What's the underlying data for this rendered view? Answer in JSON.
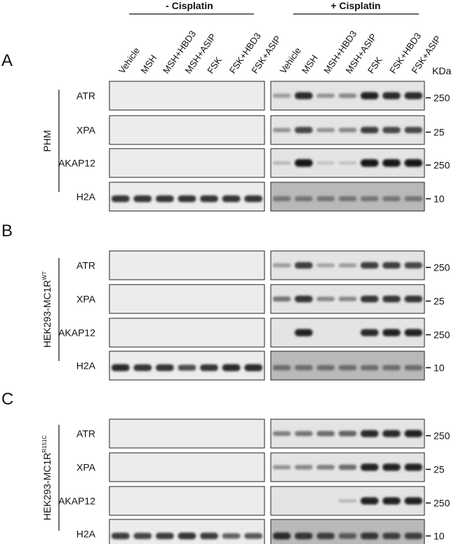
{
  "figure": {
    "treatments": {
      "minus": "- Cisplatin",
      "plus": "+ Cisplatin"
    },
    "lanes": [
      "Vehicle",
      "MSH",
      "MSH+HBD3",
      "MSH+ASIP",
      "FSK",
      "FSK+HBD3",
      "FSK+ASIP"
    ],
    "kda_label": "KDa",
    "panels": [
      {
        "letter": "A",
        "cell_line": "PHM",
        "cell_sup": "",
        "rows": [
          {
            "protein": "ATR",
            "marker": "250",
            "minus": [
              0,
              0,
              0,
              0,
              0,
              0,
              0
            ],
            "plus": [
              0.25,
              0.85,
              0.3,
              0.35,
              0.9,
              0.85,
              0.85
            ]
          },
          {
            "protein": "XPA",
            "marker": "25",
            "minus": [
              0,
              0,
              0,
              0,
              0,
              0,
              0
            ],
            "plus": [
              0.3,
              0.7,
              0.3,
              0.35,
              0.75,
              0.7,
              0.7
            ]
          },
          {
            "protein": "AKAP12",
            "marker": "250",
            "minus": [
              0,
              0,
              0,
              0,
              0,
              0,
              0
            ],
            "plus": [
              0.1,
              0.95,
              0.05,
              0.05,
              0.95,
              0.95,
              0.95
            ]
          },
          {
            "protein": "H2A",
            "marker": "10",
            "minus": [
              0.8,
              0.8,
              0.8,
              0.8,
              0.8,
              0.8,
              0.8
            ],
            "plus": [
              0.45,
              0.45,
              0.45,
              0.45,
              0.45,
              0.45,
              0.45
            ]
          }
        ]
      },
      {
        "letter": "B",
        "cell_line": "HEK293-MC1R",
        "cell_sup": "WT",
        "rows": [
          {
            "protein": "ATR",
            "marker": "250",
            "minus": [
              0,
              0,
              0,
              0,
              0,
              0,
              0
            ],
            "plus": [
              0.25,
              0.75,
              0.2,
              0.25,
              0.75,
              0.75,
              0.7
            ]
          },
          {
            "protein": "XPA",
            "marker": "25",
            "minus": [
              0,
              0,
              0,
              0,
              0,
              0,
              0
            ],
            "plus": [
              0.45,
              0.8,
              0.35,
              0.35,
              0.8,
              0.8,
              0.8
            ]
          },
          {
            "protein": "AKAP12",
            "marker": "250",
            "minus": [
              0,
              0,
              0,
              0,
              0,
              0,
              0
            ],
            "plus": [
              0,
              0.9,
              0,
              0,
              0.85,
              0.9,
              0.9
            ]
          },
          {
            "protein": "H2A",
            "marker": "10",
            "minus": [
              0.85,
              0.8,
              0.8,
              0.65,
              0.8,
              0.85,
              0.85
            ],
            "plus": [
              0.5,
              0.5,
              0.5,
              0.5,
              0.5,
              0.5,
              0.5
            ]
          }
        ]
      },
      {
        "letter": "C",
        "cell_line": "HEK293-MC1R",
        "cell_sup": "R151C",
        "rows": [
          {
            "protein": "ATR",
            "marker": "250",
            "minus": [
              0,
              0,
              0,
              0,
              0,
              0,
              0
            ],
            "plus": [
              0.4,
              0.45,
              0.5,
              0.55,
              0.85,
              0.85,
              0.9
            ]
          },
          {
            "protein": "XPA",
            "marker": "25",
            "minus": [
              0,
              0,
              0,
              0,
              0,
              0,
              0
            ],
            "plus": [
              0.3,
              0.35,
              0.4,
              0.5,
              0.9,
              0.9,
              0.9
            ]
          },
          {
            "protein": "AKAP12",
            "marker": "250",
            "minus": [
              0,
              0,
              0,
              0,
              0,
              0,
              0
            ],
            "plus": [
              0,
              0,
              0,
              0.1,
              0.9,
              0.9,
              0.9
            ]
          },
          {
            "protein": "H2A",
            "marker": "10",
            "minus": [
              0.75,
              0.7,
              0.75,
              0.8,
              0.75,
              0.55,
              0.6
            ],
            "plus": [
              0.85,
              0.8,
              0.75,
              0.6,
              0.8,
              0.75,
              0.75
            ]
          }
        ]
      }
    ]
  }
}
